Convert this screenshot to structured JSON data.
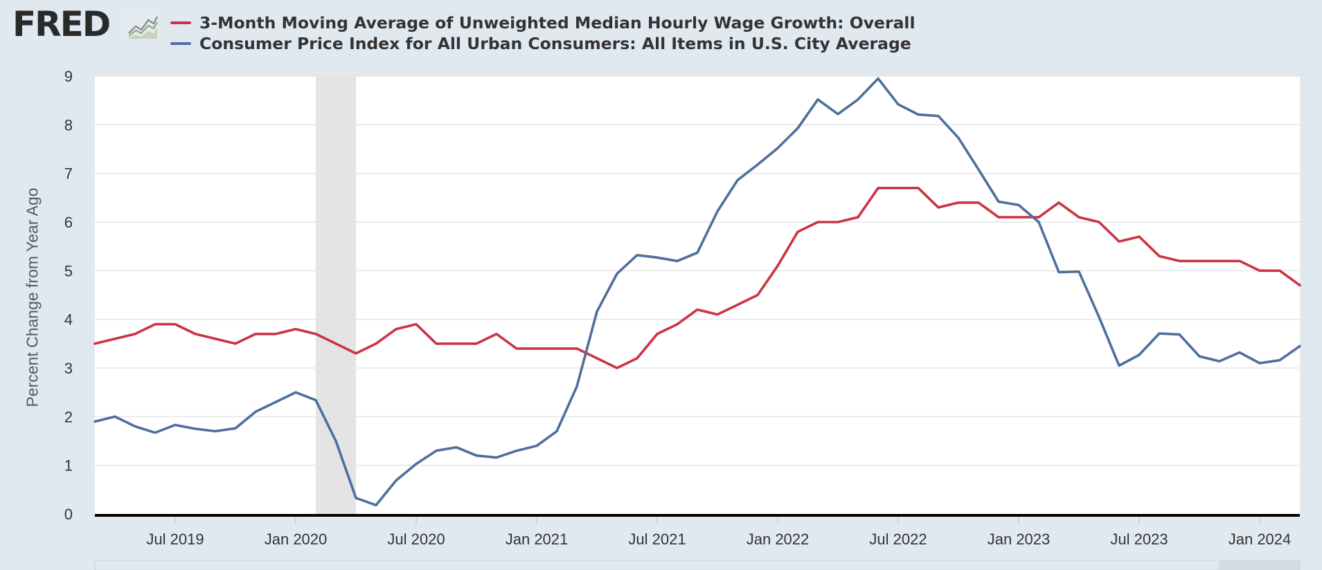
{
  "brand": {
    "logo_text": "FRED",
    "logo_icon": "line-chart-icon"
  },
  "legend": [
    {
      "label": "3-Month Moving Average of Unweighted Median Hourly Wage Growth: Overall",
      "color": "#cc3342"
    },
    {
      "label": "Consumer Price Index for All Urban Consumers: All Items in U.S. City Average",
      "color": "#4e6f9c"
    }
  ],
  "chart_data": {
    "type": "line",
    "title": "",
    "xlabel": "",
    "ylabel": "Percent Change from Year Ago",
    "ylim": [
      0,
      9
    ],
    "yticks": [
      0,
      1,
      2,
      3,
      4,
      5,
      6,
      7,
      8,
      9
    ],
    "xlim": [
      "2019-03",
      "2024-03"
    ],
    "xticks": [
      {
        "date": "2019-07",
        "label": "Jul 2019"
      },
      {
        "date": "2020-01",
        "label": "Jan 2020"
      },
      {
        "date": "2020-07",
        "label": "Jul 2020"
      },
      {
        "date": "2021-01",
        "label": "Jan 2021"
      },
      {
        "date": "2021-07",
        "label": "Jul 2021"
      },
      {
        "date": "2022-01",
        "label": "Jan 2022"
      },
      {
        "date": "2022-07",
        "label": "Jul 2022"
      },
      {
        "date": "2023-01",
        "label": "Jan 2023"
      },
      {
        "date": "2023-07",
        "label": "Jul 2023"
      },
      {
        "date": "2024-01",
        "label": "Jan 2024"
      }
    ],
    "grid": true,
    "legend_position": "top",
    "recession_shading": [
      {
        "start": "2020-02",
        "end": "2020-04"
      }
    ],
    "x": [
      "2019-03",
      "2019-04",
      "2019-05",
      "2019-06",
      "2019-07",
      "2019-08",
      "2019-09",
      "2019-10",
      "2019-11",
      "2019-12",
      "2020-01",
      "2020-02",
      "2020-03",
      "2020-04",
      "2020-05",
      "2020-06",
      "2020-07",
      "2020-08",
      "2020-09",
      "2020-10",
      "2020-11",
      "2020-12",
      "2021-01",
      "2021-02",
      "2021-03",
      "2021-04",
      "2021-05",
      "2021-06",
      "2021-07",
      "2021-08",
      "2021-09",
      "2021-10",
      "2021-11",
      "2021-12",
      "2022-01",
      "2022-02",
      "2022-03",
      "2022-04",
      "2022-05",
      "2022-06",
      "2022-07",
      "2022-08",
      "2022-09",
      "2022-10",
      "2022-11",
      "2022-12",
      "2023-01",
      "2023-02",
      "2023-03",
      "2023-04",
      "2023-05",
      "2023-06",
      "2023-07",
      "2023-08",
      "2023-09",
      "2023-10",
      "2023-11",
      "2023-12",
      "2024-01",
      "2024-02",
      "2024-03"
    ],
    "series": [
      {
        "name": "3-Month Moving Average of Unweighted Median Hourly Wage Growth: Overall",
        "color": "#cc3342",
        "values": [
          3.5,
          3.6,
          3.7,
          3.9,
          3.9,
          3.7,
          3.6,
          3.5,
          3.7,
          3.7,
          3.8,
          3.7,
          3.5,
          3.3,
          3.5,
          3.8,
          3.9,
          3.5,
          3.5,
          3.5,
          3.7,
          3.4,
          3.4,
          3.4,
          3.4,
          3.2,
          3.0,
          3.2,
          3.7,
          3.9,
          4.2,
          4.1,
          4.3,
          4.5,
          5.1,
          5.8,
          6.0,
          6.0,
          6.1,
          6.7,
          6.7,
          6.7,
          6.3,
          6.4,
          6.4,
          6.1,
          6.1,
          6.1,
          6.4,
          6.1,
          6.0,
          5.6,
          5.7,
          5.3,
          5.2,
          5.2,
          5.2,
          5.2,
          5.0,
          5.0,
          4.7
        ]
      },
      {
        "name": "Consumer Price Index for All Urban Consumers: All Items in U.S. City Average",
        "color": "#4e6f9c",
        "values": [
          1.9,
          2.0,
          1.8,
          1.67,
          1.83,
          1.75,
          1.7,
          1.76,
          2.1,
          2.3,
          2.5,
          2.34,
          1.5,
          0.33,
          0.18,
          0.69,
          1.03,
          1.3,
          1.37,
          1.2,
          1.16,
          1.3,
          1.4,
          1.7,
          2.62,
          4.16,
          4.94,
          5.32,
          5.27,
          5.2,
          5.37,
          6.22,
          6.86,
          7.18,
          7.52,
          7.93,
          8.52,
          8.22,
          8.52,
          8.95,
          8.42,
          8.21,
          8.18,
          7.73,
          7.08,
          6.42,
          6.35,
          6.0,
          4.97,
          4.98,
          4.05,
          3.05,
          3.27,
          3.71,
          3.69,
          3.24,
          3.14,
          3.32,
          3.1,
          3.16,
          3.45
        ]
      }
    ]
  }
}
